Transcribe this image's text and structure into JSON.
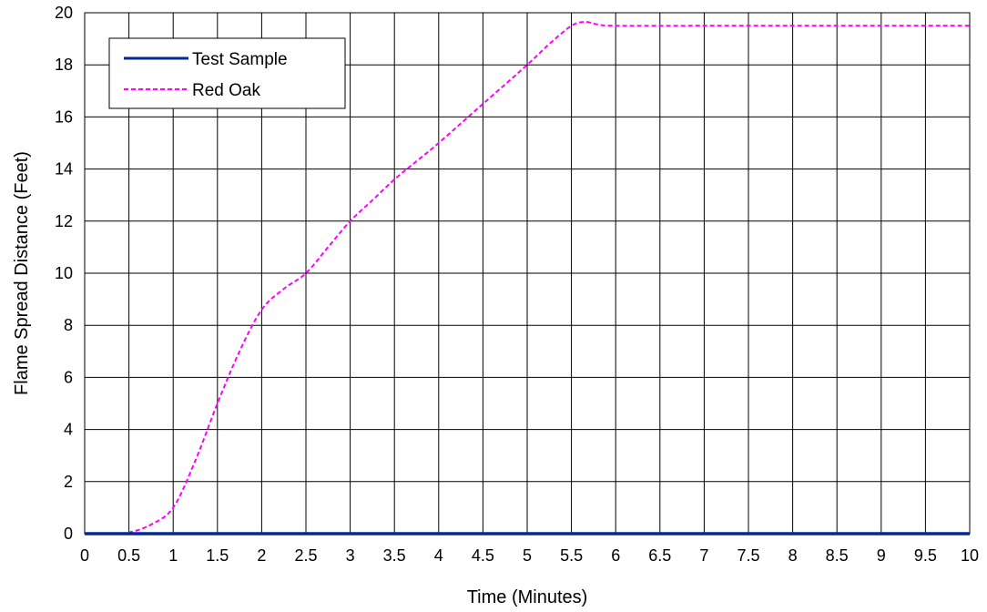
{
  "chart_data": {
    "type": "line",
    "title": "",
    "xlabel": "Time (Minutes)",
    "ylabel": "Flame Spread Distance (Feet)",
    "xlim": [
      0,
      10
    ],
    "ylim": [
      0,
      20
    ],
    "x_ticks": [
      "0",
      "0.5",
      "1",
      "1.5",
      "2",
      "2.5",
      "3",
      "3.5",
      "4",
      "4.5",
      "5",
      "5.5",
      "6",
      "6.5",
      "7",
      "7.5",
      "8",
      "8.5",
      "9",
      "9.5",
      "10"
    ],
    "y_ticks": [
      "0",
      "2",
      "4",
      "6",
      "8",
      "10",
      "12",
      "14",
      "16",
      "18",
      "20"
    ],
    "grid": true,
    "legend_position": "top-left",
    "series": [
      {
        "name": "Test Sample",
        "color": "#002a90",
        "style": "solid",
        "points": [
          [
            0,
            0
          ],
          [
            10,
            0
          ]
        ]
      },
      {
        "name": "Red Oak",
        "color": "#ff00ff",
        "style": "dashed",
        "points": [
          [
            0,
            0
          ],
          [
            0.25,
            0
          ],
          [
            0.5,
            0.05
          ],
          [
            0.75,
            0.35
          ],
          [
            1.0,
            1.0
          ],
          [
            1.25,
            2.8
          ],
          [
            1.5,
            5.0
          ],
          [
            1.75,
            7.0
          ],
          [
            2.0,
            8.6
          ],
          [
            2.25,
            9.4
          ],
          [
            2.5,
            10.0
          ],
          [
            2.75,
            11.0
          ],
          [
            3.0,
            12.0
          ],
          [
            3.25,
            12.8
          ],
          [
            3.5,
            13.6
          ],
          [
            3.75,
            14.3
          ],
          [
            4.0,
            15.0
          ],
          [
            4.5,
            16.5
          ],
          [
            5.0,
            18.0
          ],
          [
            5.25,
            18.8
          ],
          [
            5.5,
            19.5
          ],
          [
            5.65,
            19.65
          ],
          [
            5.8,
            19.55
          ],
          [
            6.0,
            19.5
          ],
          [
            7.0,
            19.5
          ],
          [
            8.0,
            19.5
          ],
          [
            9.0,
            19.5
          ],
          [
            10.0,
            19.5
          ]
        ]
      }
    ]
  }
}
